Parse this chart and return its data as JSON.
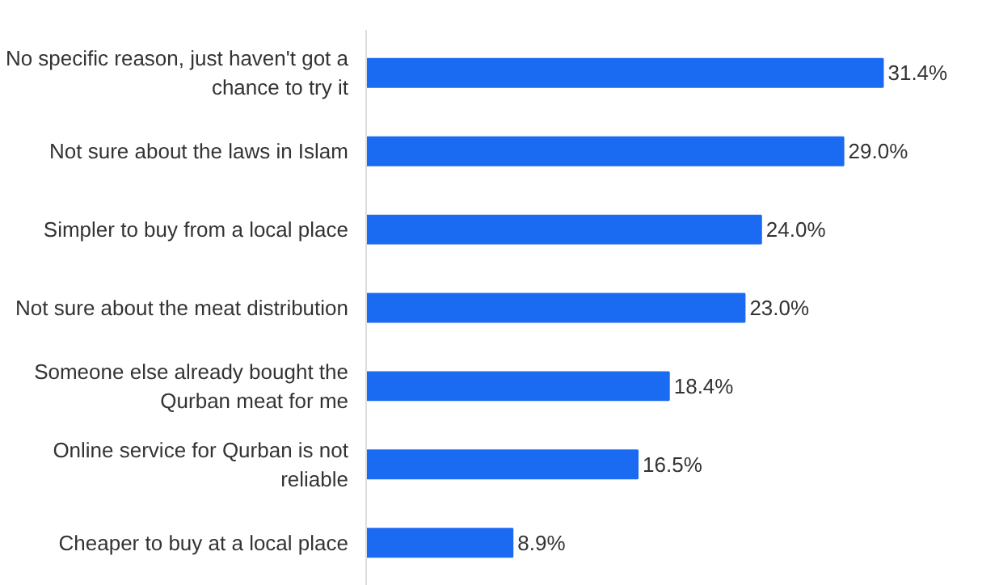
{
  "chart_data": {
    "type": "bar",
    "orientation": "horizontal",
    "categories": [
      "No specific reason, just haven't got a\nchance to try it",
      "Not sure about the laws in Islam",
      "Simpler to buy from a local place",
      "Not sure about the meat distribution",
      "Someone else already bought the\nQurban meat for me",
      "Online service for Qurban is not\nreliable",
      "Cheaper to buy at a local place"
    ],
    "values": [
      31.4,
      29.0,
      24.0,
      23.0,
      18.4,
      16.5,
      8.9
    ],
    "value_labels": [
      "31.4%",
      "29.0%",
      "24.0%",
      "23.0%",
      "18.4%",
      "16.5%",
      "8.9%"
    ],
    "color": "#1a6af2",
    "tick_labels": "y",
    "grid": false
  }
}
